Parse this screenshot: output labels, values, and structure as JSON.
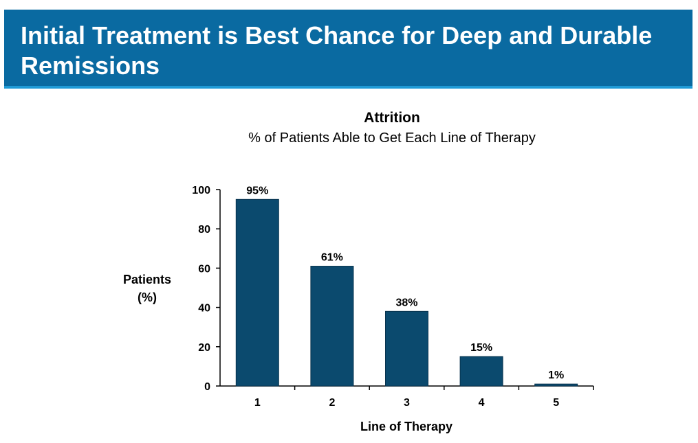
{
  "slide": {
    "title": "Initial Treatment is Best Chance for Deep and Durable Remissions",
    "banner_color": "#0a6aa1",
    "banner_border_color": "#1f9ad6"
  },
  "chart_data": {
    "type": "bar",
    "title": "Attrition",
    "subtitle": "% of Patients Able to Get Each Line of Therapy",
    "xlabel": "Line of Therapy",
    "ylabel": [
      "Patients",
      "(%)"
    ],
    "categories": [
      "1",
      "2",
      "3",
      "4",
      "5"
    ],
    "values": [
      95,
      61,
      38,
      15,
      1
    ],
    "data_labels": [
      "95%",
      "61%",
      "38%",
      "15%",
      "1%"
    ],
    "ylim": [
      0,
      100
    ],
    "yticks": [
      0,
      20,
      40,
      60,
      80,
      100
    ],
    "bar_color": "#0b4a6e",
    "grid": false,
    "legend": "none"
  }
}
